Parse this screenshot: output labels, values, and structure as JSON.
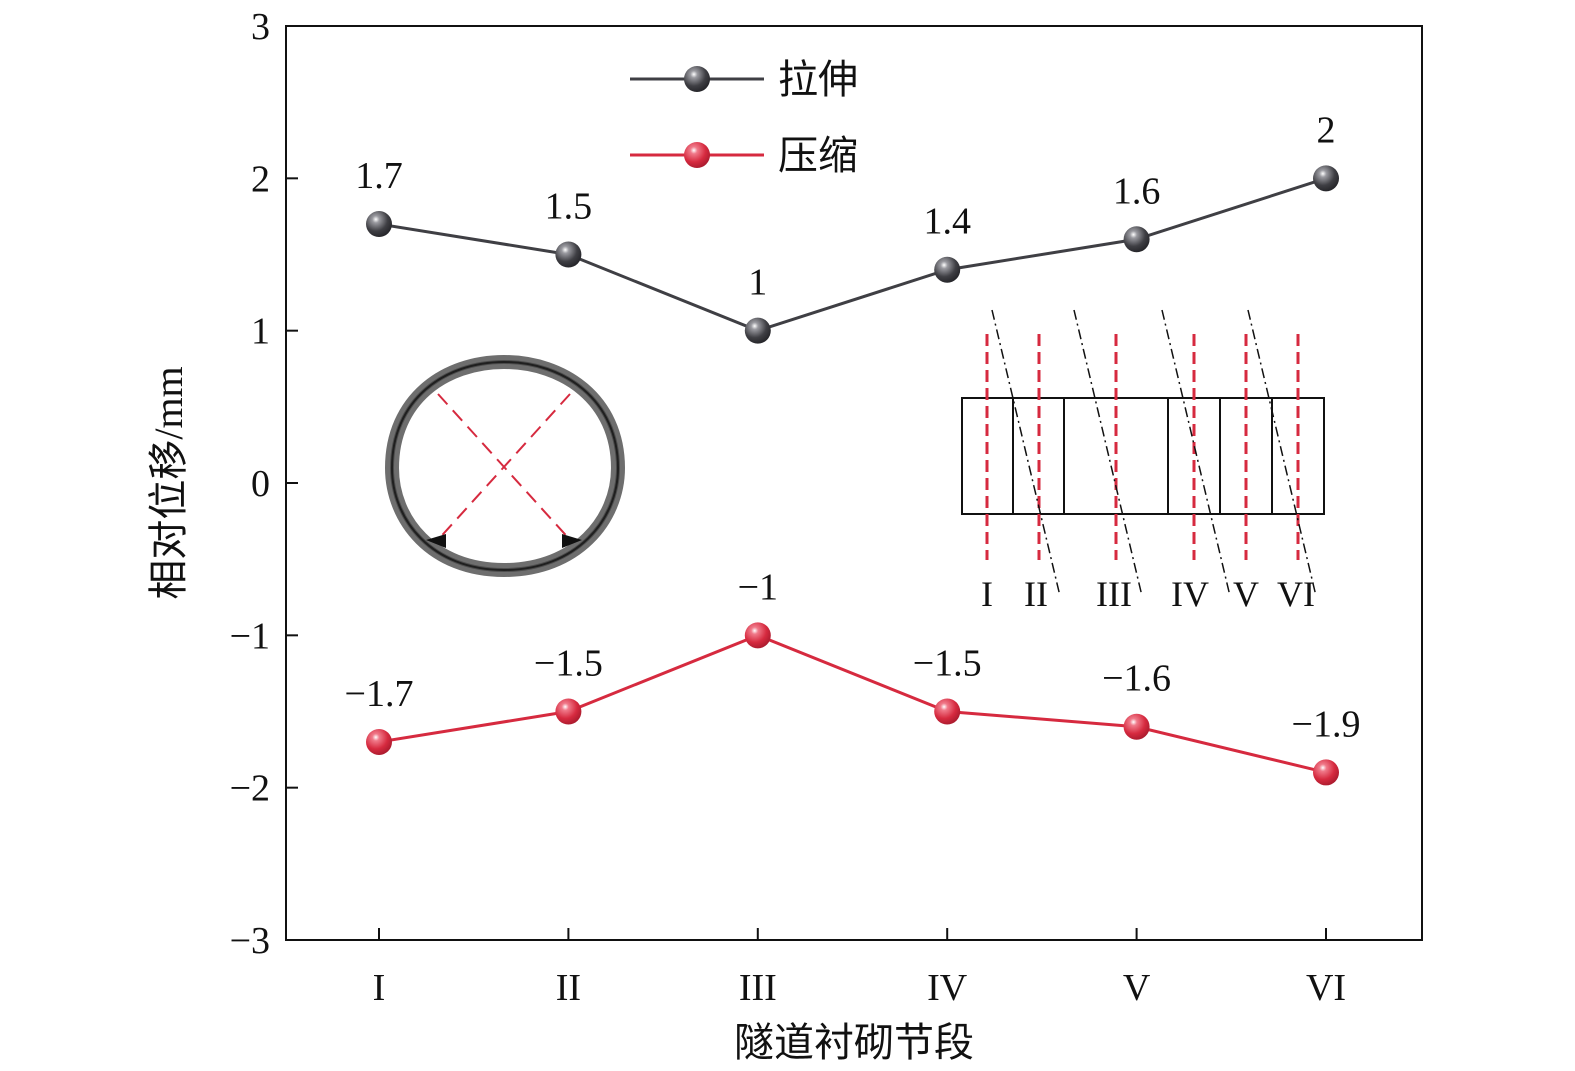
{
  "chart_data": {
    "type": "line",
    "title": "",
    "xlabel": "隧道衬砌节段",
    "ylabel": "相对位移/mm",
    "categories": [
      "I",
      "II",
      "III",
      "IV",
      "V",
      "VI"
    ],
    "ylim": [
      -3,
      3
    ],
    "yticks": [
      -3,
      -2,
      -1,
      0,
      1,
      2,
      3
    ],
    "ytick_labels": [
      "−3",
      "−2",
      "−1",
      "0",
      "1",
      "2",
      "3"
    ],
    "grid": false,
    "legend_position": "top-left",
    "series": [
      {
        "name": "拉伸",
        "color": "#3f3f44",
        "values": [
          1.7,
          1.5,
          1,
          1.4,
          1.6,
          2
        ],
        "labels": [
          "1.7",
          "1.5",
          "1",
          "1.4",
          "1.6",
          "2"
        ]
      },
      {
        "name": "压缩",
        "color": "#d62a3f",
        "values": [
          -1.7,
          -1.5,
          -1,
          -1.5,
          -1.6,
          -1.9
        ],
        "labels": [
          "−1.7",
          "−1.5",
          "−1",
          "−1.5",
          "−1.6",
          "−1.9"
        ]
      }
    ]
  },
  "inset": {
    "section_labels": [
      "I",
      "II",
      "III",
      "IV",
      "V",
      "VI"
    ],
    "dash_color": "#d62a3f"
  }
}
